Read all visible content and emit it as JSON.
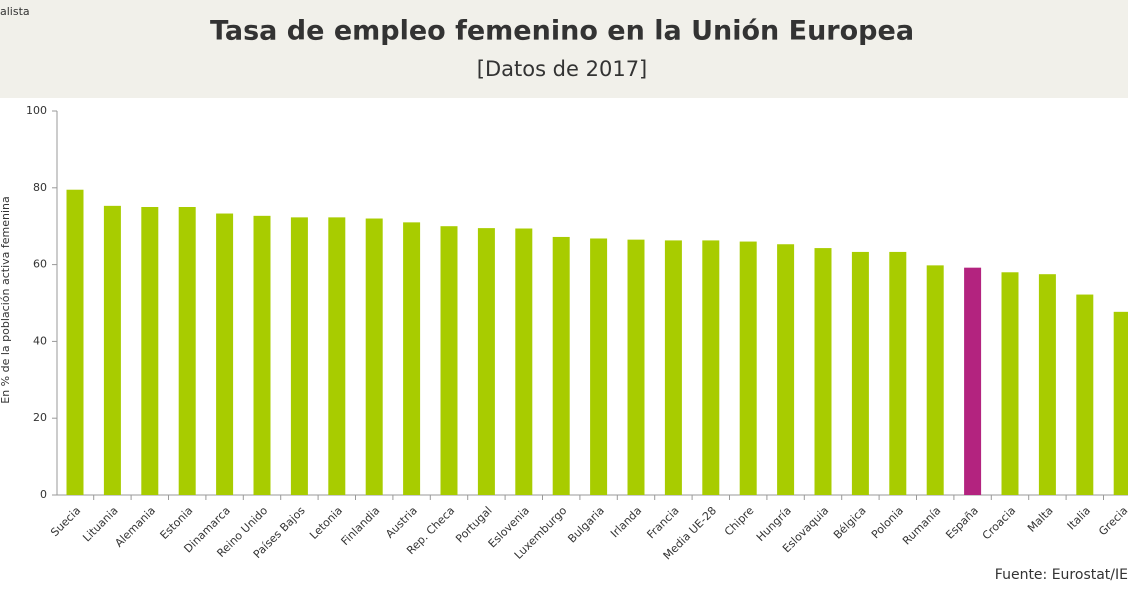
{
  "chart_data": {
    "type": "bar",
    "source_mark": "alista",
    "title": "Tasa de empleo femenino en la Unión Europea",
    "subtitle": "[Datos de 2017]",
    "y_label": "En % de la población activa femenina",
    "footer": "Fuente: Eurostat/IE",
    "categories": [
      "Suecia",
      "Lituania",
      "Alemania",
      "Estonia",
      "Dinamarca",
      "Reino Unido",
      "Países Bajos",
      "Letonia",
      "Finlandia",
      "Austria",
      "Rep. Checa",
      "Portugal",
      "Eslovenia",
      "Luxemburgo",
      "Bulgaria",
      "Irlanda",
      "Francia",
      "Media UE-28",
      "Chipre",
      "Hungría",
      "Eslovaquia",
      "Bélgica",
      "Polonia",
      "Rumanía",
      "España",
      "Croacia",
      "Malta",
      "Italia",
      "Grecia"
    ],
    "values": [
      79.5,
      75.3,
      75,
      75,
      73.3,
      72.7,
      72.3,
      72.3,
      72,
      71,
      70,
      69.5,
      69.4,
      67.2,
      66.8,
      66.5,
      66.3,
      66.3,
      66,
      65.3,
      64.3,
      63.3,
      63.3,
      59.8,
      59.2,
      58,
      57.5,
      52.2,
      47.7
    ],
    "colors": [
      "#a8cc00",
      "#a8cc00",
      "#a8cc00",
      "#a8cc00",
      "#a8cc00",
      "#a8cc00",
      "#a8cc00",
      "#a8cc00",
      "#a8cc00",
      "#a8cc00",
      "#a8cc00",
      "#a8cc00",
      "#a8cc00",
      "#a8cc00",
      "#a8cc00",
      "#a8cc00",
      "#a8cc00",
      "#a8cc00",
      "#a8cc00",
      "#a8cc00",
      "#a8cc00",
      "#a8cc00",
      "#a8cc00",
      "#a8cc00",
      "#b3237f",
      "#a8cc00",
      "#a8cc00",
      "#a8cc00",
      "#a8cc00"
    ],
    "ylim": [
      0,
      100
    ],
    "yticks": [
      0,
      20,
      40,
      60,
      80,
      100
    ]
  }
}
